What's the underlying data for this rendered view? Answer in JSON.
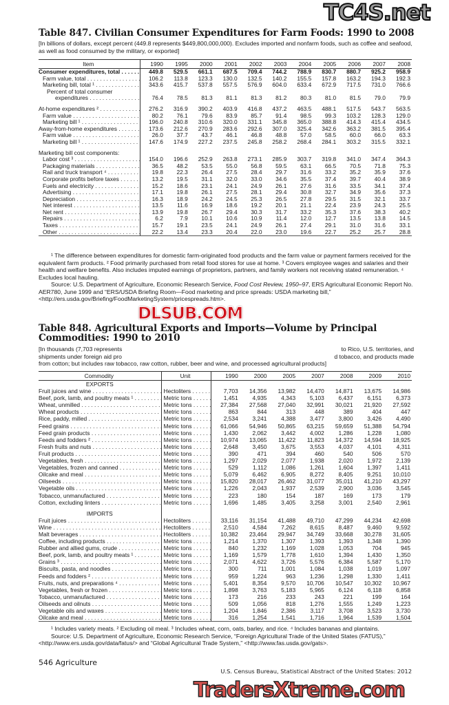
{
  "table847": {
    "title": "Table 847. Civilian Consumer Expenditures for Farm Foods: 1990 to 2008",
    "intro": "[In billions of dollars, except percent (449.8 represents $449,800,000,000). Excludes imported and nonfarm foods, such as coffee and seafood, as well as food consumed by the military, or exported]",
    "columns": [
      "Item",
      "1990",
      "1995",
      "2000",
      "2001",
      "2002",
      "2003",
      "2004",
      "2005",
      "2006",
      "2007",
      "2008"
    ],
    "rows": [
      {
        "label": "Consumer expenditures, total",
        "indent": 0,
        "bold": true,
        "values": [
          "449.8",
          "529.5",
          "661.1",
          "687.5",
          "709.4",
          "744.2",
          "788.9",
          "830.7",
          "880.7",
          "925.2",
          "958.9"
        ]
      },
      {
        "label": "Farm value, total",
        "indent": 1,
        "values": [
          "106.2",
          "113.8",
          "123.3",
          "130.0",
          "132.5",
          "140.2",
          "155.5",
          "157.8",
          "163.2",
          "194.3",
          "192.3"
        ]
      },
      {
        "label": "Marketing bill, total ¹",
        "indent": 1,
        "values": [
          "343.6",
          "415.7",
          "537.8",
          "557.5",
          "576.9",
          "604.0",
          "633.4",
          "672.9",
          "717.5",
          "731.0",
          "766.6"
        ]
      },
      {
        "label": "Percent of total consumer",
        "indent": 2,
        "nodots": true,
        "values": []
      },
      {
        "label": "expenditures",
        "indent": 3,
        "values": [
          "76.4",
          "78.5",
          "81.3",
          "81.1",
          "81.3",
          "81.2",
          "80.3",
          "81.0",
          "81.5",
          "79.0",
          "79.9"
        ]
      },
      {
        "gap": true
      },
      {
        "label": "At-home expenditures ²",
        "indent": 0,
        "values": [
          "276.2",
          "316.9",
          "390.2",
          "403.9",
          "416.8",
          "437.2",
          "463.5",
          "488.1",
          "517.5",
          "543.7",
          "563.5"
        ]
      },
      {
        "label": "Farm value",
        "indent": 1,
        "values": [
          "80.2",
          "76.1",
          "79.6",
          "83.9",
          "85.7",
          "91.4",
          "98.5",
          "99.3",
          "103.2",
          "128.3",
          "129.0"
        ]
      },
      {
        "label": "Marketing bill ¹",
        "indent": 1,
        "values": [
          "196.0",
          "240.8",
          "310.6",
          "320.0",
          "331.1",
          "345.8",
          "365.0",
          "388.8",
          "414.3",
          "415.4",
          "434.5"
        ]
      },
      {
        "label": "Away-from-home expenditures",
        "indent": 0,
        "values": [
          "173.6",
          "212.6",
          "270.9",
          "283.6",
          "292.6",
          "307.0",
          "325.4",
          "342.6",
          "363.2",
          "381.5",
          "395.4"
        ]
      },
      {
        "label": "Farm value",
        "indent": 1,
        "values": [
          "26.0",
          "37.7",
          "43.7",
          "46.1",
          "46.8",
          "48.8",
          "57.0",
          "58.5",
          "60.0",
          "66.0",
          "63.3"
        ]
      },
      {
        "label": "Marketing bill ¹",
        "indent": 1,
        "values": [
          "147.6",
          "174.9",
          "227.2",
          "237.5",
          "245.8",
          "258.2",
          "268.4",
          "284.1",
          "303.2",
          "315.5",
          "332.1"
        ]
      },
      {
        "gap": true
      },
      {
        "label": "Marketing bill cost components:",
        "indent": 0,
        "nodots": true,
        "values": []
      },
      {
        "label": "Labor cost ³",
        "indent": 1,
        "values": [
          "154.0",
          "196.6",
          "252.9",
          "263.8",
          "273.1",
          "285.9",
          "303.7",
          "319.8",
          "341.0",
          "347.4",
          "364.3"
        ]
      },
      {
        "label": "Packaging materials",
        "indent": 1,
        "values": [
          "36.5",
          "48.2",
          "53.5",
          "55.0",
          "56.8",
          "59.5",
          "63.1",
          "66.5",
          "70.5",
          "71.8",
          "75.3"
        ]
      },
      {
        "label": "Rail and truck transport ⁴",
        "indent": 1,
        "values": [
          "19.8",
          "22.3",
          "26.4",
          "27.5",
          "28.4",
          "29.7",
          "31.6",
          "33.2",
          "35.2",
          "35.9",
          "37.6"
        ]
      },
      {
        "label": "Corporate profits before taxes",
        "indent": 1,
        "values": [
          "13.2",
          "19.5",
          "31.1",
          "32.0",
          "33.0",
          "34.6",
          "35.5",
          "37.4",
          "39.7",
          "40.4",
          "38.9"
        ]
      },
      {
        "label": "Fuels and electricity",
        "indent": 1,
        "values": [
          "15.2",
          "18.6",
          "23.1",
          "24.1",
          "24.9",
          "26.1",
          "27.6",
          "31.6",
          "33.5",
          "34.1",
          "37.4"
        ]
      },
      {
        "label": "Advertising",
        "indent": 1,
        "values": [
          "17.1",
          "19.8",
          "26.1",
          "27.5",
          "28.1",
          "29.4",
          "30.8",
          "32.7",
          "34.9",
          "35.6",
          "37.3"
        ]
      },
      {
        "label": "Depreciation",
        "indent": 1,
        "values": [
          "16.3",
          "18.9",
          "24.2",
          "24.5",
          "25.3",
          "26.5",
          "27.8",
          "29.5",
          "31.5",
          "32.1",
          "33.7"
        ]
      },
      {
        "label": "Net interest",
        "indent": 1,
        "values": [
          "13.5",
          "11.6",
          "16.9",
          "18.6",
          "19.2",
          "20.1",
          "21.1",
          "22.4",
          "23.9",
          "24.3",
          "25.5"
        ]
      },
      {
        "label": "Net rent",
        "indent": 1,
        "values": [
          "13.9",
          "19.8",
          "26.7",
          "29.4",
          "30.3",
          "31.7",
          "33.2",
          "35.3",
          "37.6",
          "38.3",
          "40.2"
        ]
      },
      {
        "label": "Repairs",
        "indent": 1,
        "values": [
          "6.2",
          "7.9",
          "10.1",
          "10.6",
          "10.9",
          "11.4",
          "12.0",
          "12.7",
          "13.5",
          "13.8",
          "14.5"
        ]
      },
      {
        "label": "Taxes",
        "indent": 1,
        "values": [
          "15.7",
          "19.1",
          "23.5",
          "24.1",
          "24.9",
          "26.1",
          "27.4",
          "29.1",
          "31.0",
          "31.6",
          "33.1"
        ]
      },
      {
        "label": "Other",
        "indent": 1,
        "values": [
          "22.2",
          "13.4",
          "23.3",
          "20.4",
          "22.0",
          "23.0",
          "19.6",
          "22.7",
          "25.2",
          "25.7",
          "28.8"
        ]
      }
    ],
    "footnotes": "¹ The difference between expenditures for domestic farm-originated food products and the farm value or payment farmers received for the equivalent farm products. ² Food primarily purchased from retail food stores for use at home. ³ Covers employee wages and salaries and their health and welfare benefits. Also includes imputed earnings of proprietors, partners, and family workers not receiving stated remuneration. ⁴ Excludes local hauling.",
    "source_prefix": "Source: U.S. Department of Agriculture, Economic Research Service, ",
    "source_italic": "Food Cost Review, 1950–97",
    "source_suffix": ", ERS Agricultural Economic Report No. AER780, June 1999 and “ERS/USDA Briefing Room—Food marketing and price spreads: USDA marketing bill,” <http://ers.usda.gov/Briefing/FoodMarketingSystem/pricespreads.htm>."
  },
  "table848": {
    "title_line1": "Table 848. Agricultural Exports and Imports—Volume by Principal",
    "title_line2": "Commodities: 1990 to 2010",
    "intro_fragments": [
      "[In thousands (7,703 represents",
      "to Rico, U.S. territories, and",
      "shipments under foreign aid pro",
      "d tobacco, and products made",
      "from cotton; but includes raw tobacco, raw cotton, rubber, beer and wine, and processed agricultural products]"
    ],
    "columns": [
      "Commodity",
      "Unit",
      "1990",
      "2000",
      "2005",
      "2007",
      "2008",
      "2009",
      "2010"
    ],
    "rows": [
      {
        "section": "EXPORTS"
      },
      {
        "label": "Fruit juices and wine",
        "unit": "Hectoliters",
        "values": [
          "7,703",
          "14,356",
          "13,982",
          "14,470",
          "14,871",
          "13,675",
          "14,986"
        ]
      },
      {
        "label": "Beef, pork, lamb, and poultry meats ¹",
        "unit": "Metric tons",
        "values": [
          "1,451",
          "4,935",
          "4,343",
          "5,103",
          "6,437",
          "6,151",
          "6,373"
        ]
      },
      {
        "label": "Wheat, unmilled",
        "unit": "Metric tons",
        "values": [
          "27,384",
          "27,568",
          "27,040",
          "32,991",
          "30,021",
          "21,920",
          "27,592"
        ]
      },
      {
        "label": "Wheat products",
        "unit": "Metric tons",
        "values": [
          "863",
          "844",
          "313",
          "448",
          "389",
          "404",
          "447"
        ]
      },
      {
        "label": "Rice, paddy, milled",
        "unit": "Metric tons",
        "values": [
          "2,534",
          "3,241",
          "4,388",
          "3,477",
          "3,800",
          "3,426",
          "4,490"
        ]
      },
      {
        "label": "Feed grains",
        "unit": "Metric tons",
        "values": [
          "61,066",
          "54,946",
          "50,865",
          "63,215",
          "59,659",
          "51,388",
          "54,794"
        ]
      },
      {
        "label": "Feed grain products",
        "unit": "Metric tons",
        "values": [
          "1,430",
          "2,062",
          "3,442",
          "4,002",
          "1,286",
          "1,228",
          "1,080"
        ]
      },
      {
        "label": "Feeds and fodders ²",
        "unit": "Metric tons",
        "values": [
          "10,974",
          "13,065",
          "11,422",
          "11,823",
          "14,372",
          "14,594",
          "18,925"
        ]
      },
      {
        "label": "Fresh fruits and nuts",
        "unit": "Metric tons",
        "values": [
          "2,648",
          "3,450",
          "3,675",
          "3,553",
          "4,037",
          "4,101",
          "4,311"
        ]
      },
      {
        "label": "Fruit products",
        "unit": "Metric tons",
        "values": [
          "390",
          "471",
          "394",
          "460",
          "540",
          "506",
          "570"
        ]
      },
      {
        "label": "Vegetables, fresh",
        "unit": "Metric tons",
        "values": [
          "1,297",
          "2,029",
          "2,077",
          "1,938",
          "2,020",
          "1,972",
          "2,139"
        ]
      },
      {
        "label": "Vegetables, frozen and canned",
        "unit": "Metric tons",
        "values": [
          "529",
          "1,112",
          "1,086",
          "1,261",
          "1,604",
          "1,397",
          "1,411"
        ]
      },
      {
        "label": "Oilcake and meal",
        "unit": "Metric tons",
        "values": [
          "5,079",
          "6,462",
          "6,905",
          "8,272",
          "8,405",
          "9,251",
          "10,010"
        ]
      },
      {
        "label": "Oilseeds",
        "unit": "Metric tons",
        "values": [
          "15,820",
          "28,017",
          "26,462",
          "31,077",
          "35,011",
          "41,210",
          "43,297"
        ]
      },
      {
        "label": "Vegetable oils",
        "unit": "Metric tons",
        "values": [
          "1,226",
          "2,043",
          "1,937",
          "2,539",
          "2,900",
          "3,036",
          "3,545"
        ]
      },
      {
        "label": "Tobacco, unmanufactured",
        "unit": "Metric tons",
        "values": [
          "223",
          "180",
          "154",
          "187",
          "169",
          "173",
          "179"
        ]
      },
      {
        "label": "Cotton, excluding linters",
        "unit": "Metric tons",
        "values": [
          "1,696",
          "1,485",
          "3,405",
          "3,258",
          "3,001",
          "2,540",
          "2,961"
        ]
      },
      {
        "gap": true
      },
      {
        "section": "IMPORTS"
      },
      {
        "label": "Fruit juices",
        "unit": "Hectoliters",
        "values": [
          "33,116",
          "31,154",
          "41,488",
          "49,710",
          "47,299",
          "44,234",
          "42,698"
        ]
      },
      {
        "label": "Wine",
        "unit": "Hectoliters",
        "values": [
          "2,510",
          "4,584",
          "7,262",
          "8,615",
          "8,487",
          "9,460",
          "9,592"
        ]
      },
      {
        "label": "Malt beverages",
        "unit": "Hectoliters",
        "values": [
          "10,382",
          "23,464",
          "29,947",
          "34,749",
          "33,668",
          "30,278",
          "31,605"
        ]
      },
      {
        "label": "Coffee, including products",
        "unit": "Metric tons",
        "values": [
          "1,214",
          "1,370",
          "1,307",
          "1,393",
          "1,393",
          "1,348",
          "1,390"
        ]
      },
      {
        "label": "Rubber and allied gums, crude",
        "unit": "Metric tons",
        "values": [
          "840",
          "1,232",
          "1,169",
          "1,028",
          "1,053",
          "704",
          "945"
        ]
      },
      {
        "label": "Beef, pork, lamb, and poultry meats ¹",
        "unit": "Metric tons",
        "values": [
          "1,169",
          "1,579",
          "1,778",
          "1,610",
          "1,394",
          "1,430",
          "1,350"
        ]
      },
      {
        "label": "Grains ³",
        "unit": "Metric tons",
        "values": [
          "2,071",
          "4,622",
          "3,726",
          "5,576",
          "6,384",
          "5,587",
          "5,170"
        ]
      },
      {
        "label": "Biscuits, pasta, and noodles",
        "unit": "Metric tons",
        "values": [
          "300",
          "711",
          "1,001",
          "1,084",
          "1,038",
          "1,019",
          "1,097"
        ]
      },
      {
        "label": "Feeds and fodders ²",
        "unit": "Metric tons",
        "values": [
          "959",
          "1,224",
          "963",
          "1,236",
          "1,298",
          "1,330",
          "1,411"
        ]
      },
      {
        "label": "Fruits, nuts, and preparations ⁴",
        "unit": "Metric tons",
        "values": [
          "5,401",
          "8,354",
          "9,570",
          "10,706",
          "10,547",
          "10,302",
          "10,967"
        ]
      },
      {
        "label": "Vegetables, fresh or frozen",
        "unit": "Metric tons",
        "values": [
          "1,898",
          "3,763",
          "5,183",
          "5,965",
          "6,124",
          "6,118",
          "6,858"
        ]
      },
      {
        "label": "Tobacco, unmanufactured",
        "unit": "Metric tons",
        "values": [
          "173",
          "216",
          "233",
          "243",
          "221",
          "199",
          "164"
        ]
      },
      {
        "label": "Oilseeds and oilnuts",
        "unit": "Metric tons",
        "values": [
          "509",
          "1,056",
          "818",
          "1,276",
          "1,555",
          "1,249",
          "1,223"
        ]
      },
      {
        "label": "Vegetable oils and waxes",
        "unit": "Metric tons",
        "values": [
          "1,204",
          "1,846",
          "2,386",
          "3,117",
          "3,708",
          "3,523",
          "3,730"
        ]
      },
      {
        "label": "Oilcake and meal",
        "unit": "Metric tons",
        "values": [
          "316",
          "1,254",
          "1,541",
          "1,716",
          "1,964",
          "1,539",
          "1,504"
        ]
      }
    ],
    "footnotes": "¹ Includes variety meats. ² Excluding oil meal. ³ Includes wheat, corn, oats, barley, and rice. ⁴ Includes bananas and plantains.",
    "source": "Source: U.S. Department of Agriculture, Economic Research Service, “Foreign Agricultural Trade of the United States (FATUS),” <http://www.ers.usda.gov/data/fatus/> and “Global Agricultural Trade System,” <http://www.fas.usda.gov/gats>."
  },
  "page_footer": {
    "page_label": "546  Agriculture",
    "publication": "U.S. Census Bureau, Statistical Abstract of the United States: 2012"
  },
  "watermarks": {
    "top": "TC4S.net",
    "middle": "DLSUB.COM",
    "bottom": "TradersXtreme.com",
    "middle_color": "#d0121b",
    "bottom_color": "#d9534f"
  }
}
